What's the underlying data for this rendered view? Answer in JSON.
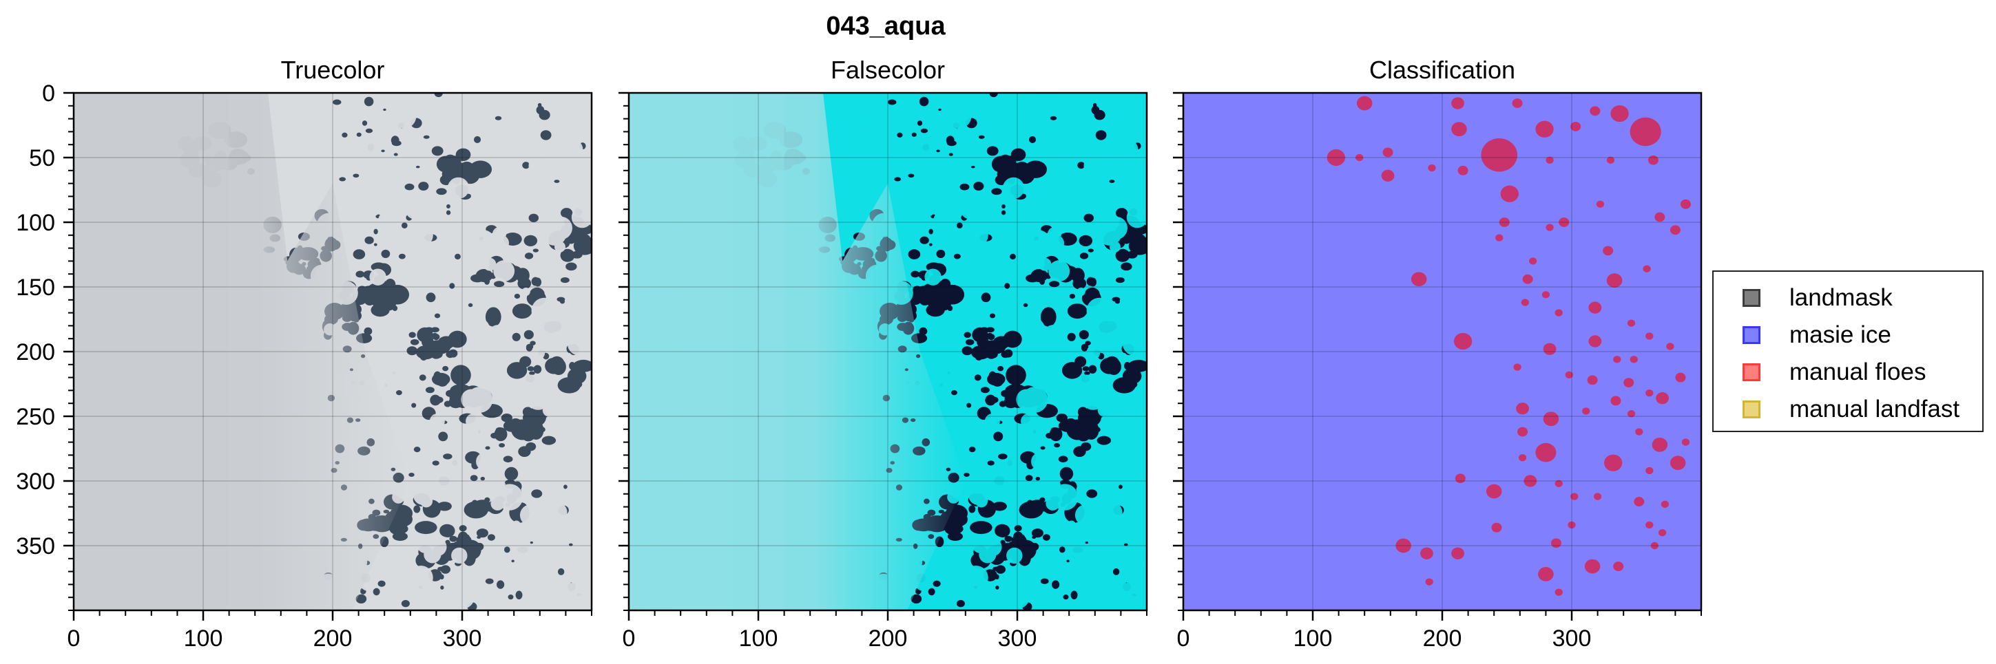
{
  "figure": {
    "title": "043_aqua"
  },
  "chart_data": [
    {
      "type": "image",
      "title": "Truecolor",
      "xlim": [
        0,
        400
      ],
      "ylim": [
        400,
        0
      ],
      "xticks": [
        0,
        100,
        200,
        300
      ],
      "yticks": [
        0,
        50,
        100,
        150,
        200,
        250,
        300,
        350
      ],
      "grid": true,
      "palette": {
        "ice": "#d9dcdf",
        "cloud": "#c9ccd0",
        "water": "#3c4b5c"
      }
    },
    {
      "type": "image",
      "title": "Falsecolor",
      "xlim": [
        0,
        400
      ],
      "ylim": [
        400,
        0
      ],
      "xticks": [
        0,
        100,
        200,
        300
      ],
      "yticks": [
        0,
        50,
        100,
        150,
        200,
        250,
        300,
        350
      ],
      "grid": true,
      "palette": {
        "ice": "#10dfe6",
        "cloud": "#8ee0e6",
        "water": "#0b1330"
      }
    },
    {
      "type": "heatmap",
      "title": "Classification",
      "xlim": [
        0,
        400
      ],
      "ylim": [
        400,
        0
      ],
      "xticks": [
        0,
        100,
        200,
        300
      ],
      "yticks": [
        0,
        50,
        100,
        150,
        200,
        250,
        300,
        350
      ],
      "grid": true,
      "background_class": "masie ice",
      "floes": [
        {
          "x": 140,
          "y": 8,
          "r": 6
        },
        {
          "x": 212,
          "y": 8,
          "r": 5
        },
        {
          "x": 258,
          "y": 8,
          "r": 4
        },
        {
          "x": 318,
          "y": 14,
          "r": 4
        },
        {
          "x": 337,
          "y": 16,
          "r": 7
        },
        {
          "x": 357,
          "y": 30,
          "r": 12
        },
        {
          "x": 213,
          "y": 28,
          "r": 6
        },
        {
          "x": 279,
          "y": 28,
          "r": 7
        },
        {
          "x": 303,
          "y": 26,
          "r": 4
        },
        {
          "x": 244,
          "y": 48,
          "r": 14
        },
        {
          "x": 158,
          "y": 46,
          "r": 4
        },
        {
          "x": 118,
          "y": 50,
          "r": 7
        },
        {
          "x": 136,
          "y": 50,
          "r": 3
        },
        {
          "x": 192,
          "y": 58,
          "r": 3
        },
        {
          "x": 283,
          "y": 52,
          "r": 3
        },
        {
          "x": 330,
          "y": 52,
          "r": 3
        },
        {
          "x": 363,
          "y": 52,
          "r": 4
        },
        {
          "x": 158,
          "y": 64,
          "r": 5
        },
        {
          "x": 252,
          "y": 78,
          "r": 7
        },
        {
          "x": 216,
          "y": 60,
          "r": 4
        },
        {
          "x": 322,
          "y": 86,
          "r": 3
        },
        {
          "x": 388,
          "y": 86,
          "r": 4
        },
        {
          "x": 248,
          "y": 100,
          "r": 4
        },
        {
          "x": 294,
          "y": 100,
          "r": 4
        },
        {
          "x": 368,
          "y": 96,
          "r": 4
        },
        {
          "x": 244,
          "y": 112,
          "r": 3
        },
        {
          "x": 283,
          "y": 104,
          "r": 3
        },
        {
          "x": 380,
          "y": 106,
          "r": 4
        },
        {
          "x": 328,
          "y": 122,
          "r": 4
        },
        {
          "x": 270,
          "y": 130,
          "r": 3
        },
        {
          "x": 182,
          "y": 144,
          "r": 6
        },
        {
          "x": 266,
          "y": 144,
          "r": 4
        },
        {
          "x": 333,
          "y": 145,
          "r": 6
        },
        {
          "x": 358,
          "y": 136,
          "r": 3
        },
        {
          "x": 264,
          "y": 162,
          "r": 3
        },
        {
          "x": 280,
          "y": 156,
          "r": 3
        },
        {
          "x": 318,
          "y": 166,
          "r": 5
        },
        {
          "x": 290,
          "y": 170,
          "r": 3
        },
        {
          "x": 346,
          "y": 178,
          "r": 3
        },
        {
          "x": 216,
          "y": 192,
          "r": 7
        },
        {
          "x": 283,
          "y": 198,
          "r": 5
        },
        {
          "x": 318,
          "y": 192,
          "r": 5
        },
        {
          "x": 360,
          "y": 188,
          "r": 3
        },
        {
          "x": 376,
          "y": 196,
          "r": 3
        },
        {
          "x": 335,
          "y": 206,
          "r": 3
        },
        {
          "x": 258,
          "y": 212,
          "r": 3
        },
        {
          "x": 348,
          "y": 206,
          "r": 3
        },
        {
          "x": 344,
          "y": 224,
          "r": 4
        },
        {
          "x": 316,
          "y": 222,
          "r": 4
        },
        {
          "x": 384,
          "y": 220,
          "r": 4
        },
        {
          "x": 298,
          "y": 218,
          "r": 3
        },
        {
          "x": 360,
          "y": 232,
          "r": 3
        },
        {
          "x": 370,
          "y": 236,
          "r": 5
        },
        {
          "x": 334,
          "y": 238,
          "r": 4
        },
        {
          "x": 262,
          "y": 244,
          "r": 5
        },
        {
          "x": 346,
          "y": 248,
          "r": 3
        },
        {
          "x": 311,
          "y": 246,
          "r": 3
        },
        {
          "x": 284,
          "y": 252,
          "r": 6
        },
        {
          "x": 262,
          "y": 262,
          "r": 4
        },
        {
          "x": 352,
          "y": 262,
          "r": 3
        },
        {
          "x": 388,
          "y": 270,
          "r": 3
        },
        {
          "x": 368,
          "y": 272,
          "r": 6
        },
        {
          "x": 280,
          "y": 278,
          "r": 8
        },
        {
          "x": 262,
          "y": 282,
          "r": 3
        },
        {
          "x": 332,
          "y": 286,
          "r": 7
        },
        {
          "x": 382,
          "y": 286,
          "r": 6
        },
        {
          "x": 360,
          "y": 292,
          "r": 3
        },
        {
          "x": 214,
          "y": 298,
          "r": 4
        },
        {
          "x": 240,
          "y": 308,
          "r": 6
        },
        {
          "x": 268,
          "y": 300,
          "r": 5
        },
        {
          "x": 290,
          "y": 302,
          "r": 3
        },
        {
          "x": 302,
          "y": 312,
          "r": 3
        },
        {
          "x": 320,
          "y": 312,
          "r": 3
        },
        {
          "x": 352,
          "y": 316,
          "r": 4
        },
        {
          "x": 372,
          "y": 318,
          "r": 3
        },
        {
          "x": 242,
          "y": 336,
          "r": 4
        },
        {
          "x": 300,
          "y": 334,
          "r": 3
        },
        {
          "x": 360,
          "y": 334,
          "r": 3
        },
        {
          "x": 370,
          "y": 340,
          "r": 3
        },
        {
          "x": 288,
          "y": 348,
          "r": 4
        },
        {
          "x": 364,
          "y": 350,
          "r": 3
        },
        {
          "x": 170,
          "y": 350,
          "r": 6
        },
        {
          "x": 188,
          "y": 356,
          "r": 5
        },
        {
          "x": 212,
          "y": 356,
          "r": 5
        },
        {
          "x": 316,
          "y": 366,
          "r": 6
        },
        {
          "x": 336,
          "y": 366,
          "r": 4
        },
        {
          "x": 280,
          "y": 372,
          "r": 6
        },
        {
          "x": 190,
          "y": 378,
          "r": 3
        },
        {
          "x": 290,
          "y": 386,
          "r": 3
        }
      ]
    }
  ],
  "legend": {
    "placement": "right",
    "items": [
      {
        "label": "landmask",
        "fill": "#7f7f7f",
        "edge": "#3d3d3d"
      },
      {
        "label": "masie ice",
        "fill": "#7f7fff",
        "edge": "#3838ff"
      },
      {
        "label": "manual floes",
        "fill": "#ff7f7f",
        "edge": "#ff3a3a"
      },
      {
        "label": "manual landfast",
        "fill": "#ead57b",
        "edge": "#d4b433"
      }
    ]
  },
  "colors": {
    "masie_ice": "#8080ff",
    "floe": "#c8336b"
  }
}
